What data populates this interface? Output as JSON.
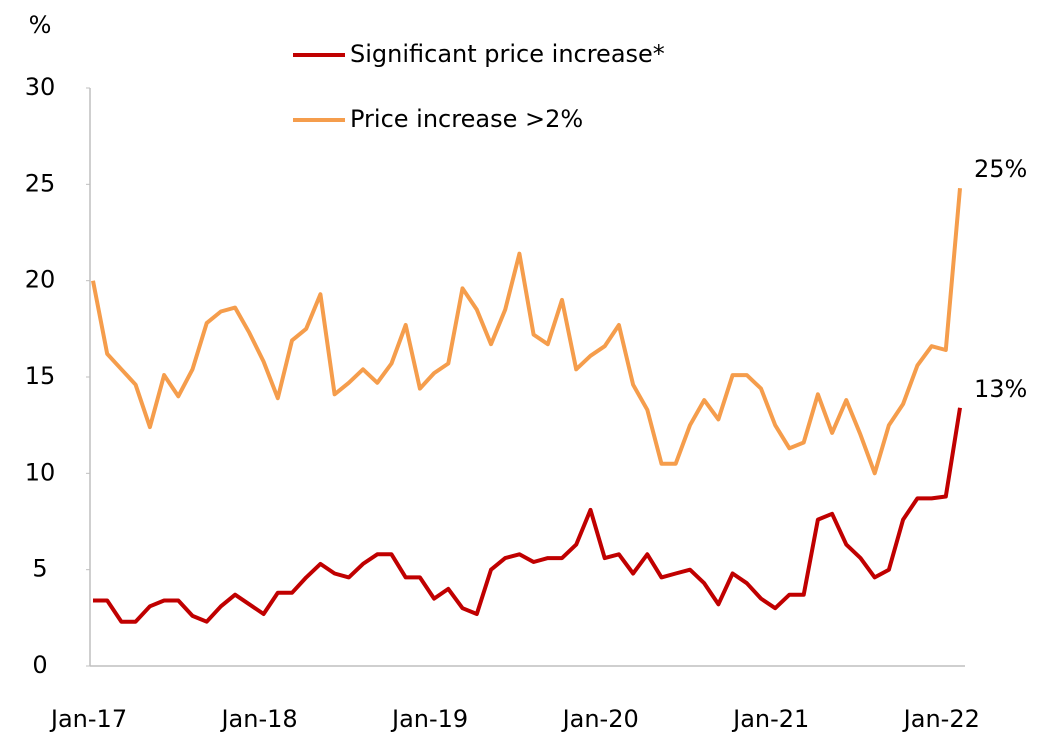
{
  "chart_data": {
    "type": "line",
    "y_label": "%",
    "ylim": [
      0,
      30
    ],
    "yticks": [
      0,
      5,
      10,
      15,
      20,
      25,
      30
    ],
    "grid": false,
    "categories": [
      "Jan-17",
      null,
      null,
      null,
      null,
      null,
      null,
      null,
      null,
      null,
      null,
      null,
      "Jan-18",
      null,
      null,
      null,
      null,
      null,
      null,
      null,
      null,
      null,
      null,
      null,
      "Jan-19",
      null,
      null,
      null,
      null,
      null,
      null,
      null,
      null,
      null,
      null,
      null,
      "Jan-20",
      null,
      null,
      null,
      null,
      null,
      null,
      null,
      null,
      null,
      null,
      null,
      "Jan-21",
      null,
      null,
      null,
      null,
      null,
      null,
      null,
      null,
      null,
      null,
      null,
      "Jan-22",
      null
    ],
    "series": [
      {
        "name": "Significant price increase*",
        "color": "#c00000",
        "values": [
          3.4,
          3.4,
          2.3,
          2.3,
          3.1,
          3.4,
          3.4,
          2.6,
          2.3,
          3.1,
          3.7,
          3.2,
          2.7,
          3.8,
          3.8,
          4.6,
          5.3,
          4.8,
          4.6,
          5.3,
          5.8,
          5.8,
          4.6,
          4.6,
          3.5,
          4.0,
          3.0,
          2.7,
          5.0,
          5.6,
          5.8,
          5.4,
          5.6,
          5.6,
          6.3,
          8.1,
          5.6,
          5.8,
          4.8,
          5.8,
          4.6,
          4.8,
          5.0,
          4.3,
          3.2,
          4.8,
          4.3,
          3.5,
          3.0,
          3.7,
          3.7,
          7.6,
          7.9,
          6.3,
          5.6,
          4.6,
          5.0,
          7.6,
          8.7,
          8.7,
          8.8,
          13.4
        ],
        "value_labels": [
          null,
          null,
          null,
          null,
          null,
          null,
          null,
          null,
          null,
          null,
          null,
          null,
          null,
          null,
          null,
          null,
          null,
          null,
          null,
          null,
          null,
          null,
          null,
          null,
          null,
          null,
          null,
          null,
          null,
          null,
          null,
          null,
          null,
          null,
          null,
          null,
          null,
          null,
          null,
          null,
          null,
          null,
          null,
          null,
          null,
          null,
          null,
          null,
          null,
          null,
          null,
          null,
          null,
          null,
          null,
          null,
          null,
          null,
          null,
          null,
          null,
          "13%"
        ]
      },
      {
        "name": "Price increase >2%",
        "color": "#f59d4c",
        "values": [
          20.0,
          16.2,
          15.4,
          14.6,
          12.4,
          15.1,
          14.0,
          15.4,
          17.8,
          18.4,
          18.6,
          17.3,
          15.8,
          13.9,
          16.9,
          17.5,
          19.3,
          14.1,
          14.7,
          15.4,
          14.7,
          15.7,
          17.7,
          14.4,
          15.2,
          15.7,
          19.6,
          18.5,
          16.7,
          18.5,
          21.4,
          17.2,
          16.7,
          19.0,
          15.4,
          16.1,
          16.6,
          17.7,
          14.6,
          13.3,
          10.5,
          10.5,
          12.5,
          13.8,
          12.8,
          15.1,
          15.1,
          14.4,
          12.5,
          11.3,
          11.6,
          14.1,
          12.1,
          13.8,
          12.0,
          10.0,
          12.5,
          13.6,
          15.6,
          16.6,
          16.4,
          24.8
        ],
        "value_labels": [
          null,
          null,
          null,
          null,
          null,
          null,
          null,
          null,
          null,
          null,
          null,
          null,
          null,
          null,
          null,
          null,
          null,
          null,
          null,
          null,
          null,
          null,
          null,
          null,
          null,
          null,
          null,
          null,
          null,
          null,
          null,
          null,
          null,
          null,
          null,
          null,
          null,
          null,
          null,
          null,
          null,
          null,
          null,
          null,
          null,
          null,
          null,
          null,
          null,
          null,
          null,
          null,
          null,
          null,
          null,
          null,
          null,
          null,
          null,
          null,
          null,
          "25%"
        ]
      }
    ]
  }
}
